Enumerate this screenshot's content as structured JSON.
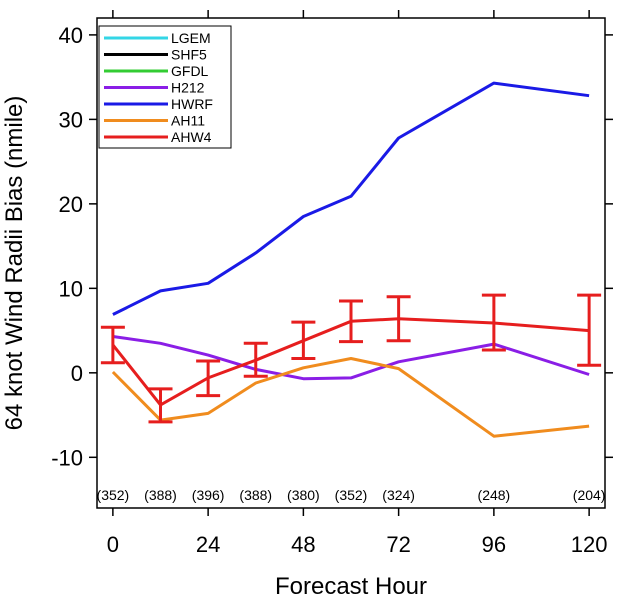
{
  "chart_data": {
    "type": "line",
    "title": "",
    "xlabel": "Forecast Hour",
    "ylabel": "64 knot Wind Radii Bias (nmile)",
    "xlim": [
      -4,
      124
    ],
    "ylim": [
      -16,
      42
    ],
    "x_ticks": [
      0,
      24,
      48,
      72,
      96,
      120
    ],
    "y_ticks": [
      -10,
      0,
      10,
      20,
      30,
      40
    ],
    "counts": [
      {
        "x": 0,
        "label": "(352)"
      },
      {
        "x": 12,
        "label": "(388)"
      },
      {
        "x": 24,
        "label": "(396)"
      },
      {
        "x": 36,
        "label": "(388)"
      },
      {
        "x": 48,
        "label": "(380)"
      },
      {
        "x": 60,
        "label": "(352)"
      },
      {
        "x": 72,
        "label": "(324)"
      },
      {
        "x": 96,
        "label": "(248)"
      },
      {
        "x": 120,
        "label": "(204)"
      }
    ],
    "legend_position": "top-left",
    "series": [
      {
        "name": "LGEM",
        "color": "#33d6e6",
        "x": [],
        "y": []
      },
      {
        "name": "SHF5",
        "color": "#000000",
        "x": [],
        "y": []
      },
      {
        "name": "GFDL",
        "color": "#33cc33",
        "x": [],
        "y": []
      },
      {
        "name": "H212",
        "color": "#8a1ee6",
        "x": [
          0,
          12,
          24,
          36,
          48,
          60,
          72,
          96,
          120
        ],
        "y": [
          4.3,
          3.5,
          2.1,
          0.4,
          -0.7,
          -0.6,
          1.3,
          3.4,
          -0.2
        ]
      },
      {
        "name": "HWRF",
        "color": "#1a1ae6",
        "x": [
          0,
          12,
          24,
          36,
          48,
          60,
          72,
          96,
          120
        ],
        "y": [
          6.9,
          9.7,
          10.6,
          14.2,
          18.5,
          20.9,
          27.8,
          34.3,
          32.8
        ]
      },
      {
        "name": "AH11",
        "color": "#f08c1e",
        "x": [
          0,
          12,
          24,
          36,
          48,
          60,
          72,
          96,
          120
        ],
        "y": [
          0.1,
          -5.6,
          -4.8,
          -1.2,
          0.6,
          1.7,
          0.5,
          -7.5,
          -6.3
        ]
      },
      {
        "name": "AHW4",
        "color": "#e61e1e",
        "x": [
          0,
          12,
          24,
          36,
          48,
          60,
          72,
          96,
          120
        ],
        "y": [
          3.3,
          -3.8,
          -0.6,
          1.5,
          3.8,
          6.1,
          6.4,
          5.9,
          5.0
        ],
        "error_low": [
          1.2,
          -5.8,
          -2.7,
          -0.4,
          1.7,
          3.7,
          3.8,
          2.7,
          0.9
        ],
        "error_high": [
          5.4,
          -1.9,
          1.4,
          3.5,
          6.0,
          8.5,
          9.0,
          9.2,
          9.2
        ]
      }
    ]
  }
}
